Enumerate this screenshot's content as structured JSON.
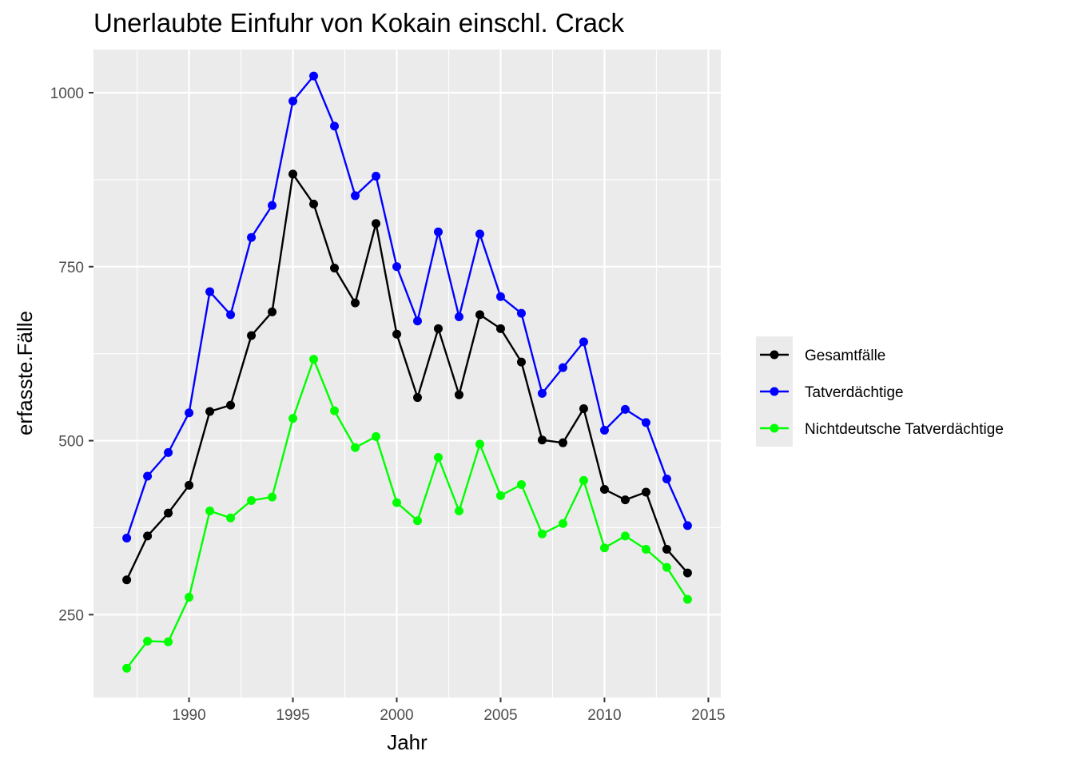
{
  "chart_data": {
    "type": "line",
    "title": "Unerlaubte Einfuhr von Kokain einschl. Crack",
    "xlabel": "Jahr",
    "ylabel": "erfasste.Fälle",
    "xlim": [
      1985.4,
      2015.6
    ],
    "ylim": [
      131,
      1062
    ],
    "x_ticks": [
      1990,
      1995,
      2000,
      2005,
      2010,
      2015
    ],
    "y_ticks": [
      250,
      500,
      750,
      1000
    ],
    "grid": true,
    "legend_position": "right",
    "x": [
      1987,
      1988,
      1989,
      1990,
      1991,
      1992,
      1993,
      1994,
      1995,
      1996,
      1997,
      1998,
      1999,
      2000,
      2001,
      2002,
      2003,
      2004,
      2005,
      2006,
      2007,
      2008,
      2009,
      2010,
      2011,
      2012,
      2013,
      2014
    ],
    "series": [
      {
        "name": "Gesamtfälle",
        "color": "#000000",
        "values": [
          300,
          363,
          396,
          436,
          542,
          551,
          651,
          685,
          883,
          840,
          748,
          698,
          812,
          653,
          562,
          661,
          566,
          681,
          661,
          613,
          501,
          497,
          546,
          430,
          415,
          426,
          344,
          310
        ]
      },
      {
        "name": "Tatverdächtige",
        "color": "#0000ff",
        "values": [
          360,
          449,
          483,
          540,
          714,
          681,
          792,
          838,
          988,
          1024,
          952,
          852,
          880,
          750,
          672,
          800,
          678,
          797,
          707,
          683,
          568,
          605,
          642,
          515,
          545,
          526,
          445,
          378
        ]
      },
      {
        "name": "Nichtdeutsche Tatverdächtige",
        "color": "#00ff00",
        "values": [
          173,
          212,
          211,
          275,
          399,
          389,
          414,
          419,
          532,
          617,
          543,
          490,
          506,
          411,
          385,
          476,
          399,
          495,
          421,
          437,
          366,
          381,
          443,
          346,
          363,
          344,
          318,
          272
        ]
      }
    ]
  }
}
